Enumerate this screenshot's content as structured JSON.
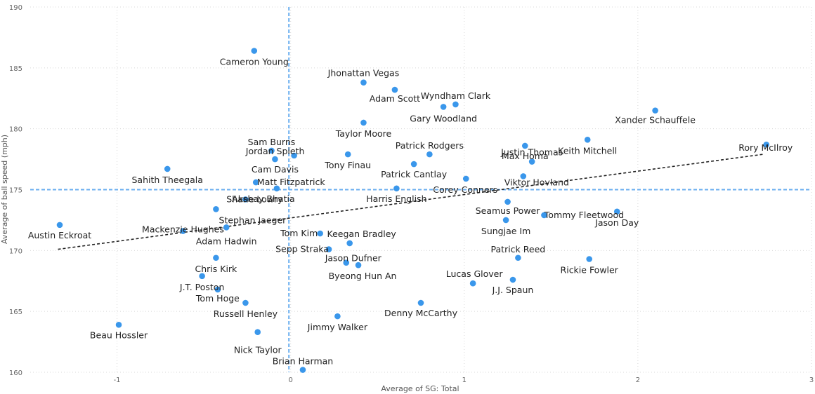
{
  "chart_data": {
    "type": "scatter",
    "xlabel": "Average of SG: Total",
    "ylabel": "Average of ball speed (mph)",
    "xlim": [
      -1.5,
      3
    ],
    "ylim": [
      160,
      190
    ],
    "x_ticks": [
      {
        "value": -1,
        "label": "-1"
      },
      {
        "value": 0,
        "label": "0"
      },
      {
        "value": 1,
        "label": "1"
      },
      {
        "value": 2,
        "label": "2"
      },
      {
        "value": 3,
        "label": "3"
      }
    ],
    "y_ticks": [
      {
        "value": 160,
        "label": "160"
      },
      {
        "value": 165,
        "label": "165"
      },
      {
        "value": 170,
        "label": "170"
      },
      {
        "value": 175,
        "label": "175"
      },
      {
        "value": 180,
        "label": "180"
      },
      {
        "value": 185,
        "label": "185"
      },
      {
        "value": 190,
        "label": "190"
      }
    ],
    "grid": true,
    "reference_lines": {
      "x": -0.01,
      "y": 175
    },
    "trend_line": {
      "x": [
        -1.34,
        2.72
      ],
      "y": [
        170.1,
        177.9
      ]
    },
    "colors": {
      "point": "#3a97eb",
      "reference": "#6aaeef",
      "trend": "#222222"
    },
    "points": [
      {
        "name": "Cameron Young",
        "x": -0.21,
        "y": 186.4
      },
      {
        "name": "Jhonattan Vegas",
        "x": 0.42,
        "y": 183.8
      },
      {
        "name": "Adam Scott",
        "x": 0.6,
        "y": 183.2
      },
      {
        "name": "Wyndham Clark",
        "x": 0.95,
        "y": 182.0
      },
      {
        "name": "Gary Woodland",
        "x": 0.88,
        "y": 181.8
      },
      {
        "name": "Xander Schauffele",
        "x": 2.1,
        "y": 181.5
      },
      {
        "name": "Taylor Moore",
        "x": 0.42,
        "y": 180.5
      },
      {
        "name": "Keith Mitchell",
        "x": 1.71,
        "y": 179.1
      },
      {
        "name": "Rory McIlroy",
        "x": 2.74,
        "y": 178.7
      },
      {
        "name": "Max Homa",
        "x": 1.35,
        "y": 178.6
      },
      {
        "name": "Sam Burns",
        "x": -0.11,
        "y": 178.2
      },
      {
        "name": "Patrick Rodgers",
        "x": 0.8,
        "y": 177.9
      },
      {
        "name": "Tony Finau",
        "x": 0.33,
        "y": 177.9
      },
      {
        "name": "Jordan Spieth",
        "x": 0.02,
        "y": 177.8
      },
      {
        "name": "Cam Davis",
        "x": -0.09,
        "y": 177.5
      },
      {
        "name": "Justin Thomas",
        "x": 1.39,
        "y": 177.3
      },
      {
        "name": "Patrick Cantlay",
        "x": 0.71,
        "y": 177.1
      },
      {
        "name": "Sahith Theegala",
        "x": -0.71,
        "y": 176.7
      },
      {
        "name": "Viktor Hovland",
        "x": 1.34,
        "y": 176.1
      },
      {
        "name": "Corey Conners",
        "x": 1.01,
        "y": 175.9
      },
      {
        "name": "Matt Fitzpatrick",
        "x": -0.2,
        "y": 175.6
      },
      {
        "name": "Harris English",
        "x": 0.61,
        "y": 175.1
      },
      {
        "name": "Akshay Bhatia",
        "x": -0.08,
        "y": 175.1
      },
      {
        "name": "Shane Lowry",
        "x": -0.26,
        "y": 174.2
      },
      {
        "name": "Seamus Power",
        "x": 1.25,
        "y": 174.0
      },
      {
        "name": "Tommy Fleetwood",
        "x": 1.46,
        "y": 172.9
      },
      {
        "name": "Jason Day",
        "x": 1.88,
        "y": 173.2
      },
      {
        "name": "Stephan Jaeger",
        "x": -0.43,
        "y": 173.4
      },
      {
        "name": "Sungjae Im",
        "x": 1.24,
        "y": 172.5
      },
      {
        "name": "Austin Eckroat",
        "x": -1.33,
        "y": 172.1
      },
      {
        "name": "Adam Hadwin",
        "x": -0.37,
        "y": 171.9
      },
      {
        "name": "Mackenzie Hughes",
        "x": -0.62,
        "y": 171.6
      },
      {
        "name": "Tom Kim",
        "x": 0.17,
        "y": 171.4
      },
      {
        "name": "Keegan Bradley",
        "x": 0.34,
        "y": 170.6
      },
      {
        "name": "Sepp Straka",
        "x": 0.22,
        "y": 170.1
      },
      {
        "name": "Patrick Reed",
        "x": 1.31,
        "y": 169.4
      },
      {
        "name": "Chris Kirk",
        "x": -0.43,
        "y": 169.4
      },
      {
        "name": "Rickie Fowler",
        "x": 1.72,
        "y": 169.3
      },
      {
        "name": "Jason Dufner",
        "x": 0.32,
        "y": 169.0
      },
      {
        "name": "Byeong Hun An",
        "x": 0.39,
        "y": 168.8
      },
      {
        "name": "Lucas Glover",
        "x": 1.05,
        "y": 167.3
      },
      {
        "name": "J.J. Spaun",
        "x": 1.28,
        "y": 167.6
      },
      {
        "name": "J.T. Poston",
        "x": -0.51,
        "y": 167.9
      },
      {
        "name": "Tom Hoge",
        "x": -0.42,
        "y": 166.8
      },
      {
        "name": "Denny McCarthy",
        "x": 0.75,
        "y": 165.7
      },
      {
        "name": "Russell Henley",
        "x": -0.26,
        "y": 165.7
      },
      {
        "name": "Jimmy Walker",
        "x": 0.27,
        "y": 164.6
      },
      {
        "name": "Beau Hossler",
        "x": -0.99,
        "y": 163.9
      },
      {
        "name": "Nick Taylor",
        "x": -0.19,
        "y": 163.3
      },
      {
        "name": "Brian Harman",
        "x": 0.07,
        "y": 160.2
      }
    ]
  }
}
